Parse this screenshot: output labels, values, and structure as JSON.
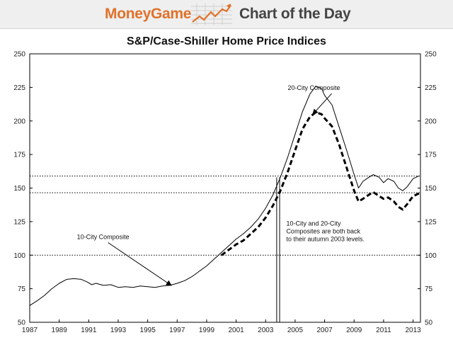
{
  "header": {
    "brand": "MoneyGame",
    "tagline": "Chart of the Day",
    "brand_color": "#e0712a",
    "tagline_color": "#444444",
    "logo_icon": "trend-chart-arrow-icon"
  },
  "chart_data": {
    "type": "line",
    "title": "S&P/Case-Shiller Home Price Indices",
    "xlabel": "",
    "ylabel": "",
    "xlim": [
      1987,
      2013.5
    ],
    "ylim": [
      50,
      250
    ],
    "x_ticks": [
      1987,
      1989,
      1991,
      1993,
      1995,
      1997,
      1999,
      2001,
      2003,
      2005,
      2007,
      2009,
      2011,
      2013
    ],
    "y_ticks": [
      50,
      75,
      100,
      125,
      150,
      175,
      200,
      225,
      250
    ],
    "y_axis_both_sides": true,
    "grid": false,
    "series": [
      {
        "name": "10-City Composite",
        "style": "solid",
        "color": "#000000",
        "points": [
          [
            1987.0,
            62.5
          ],
          [
            1987.5,
            66
          ],
          [
            1988.0,
            70
          ],
          [
            1988.5,
            75
          ],
          [
            1989.0,
            79
          ],
          [
            1989.5,
            82
          ],
          [
            1990.0,
            82.5
          ],
          [
            1990.5,
            82
          ],
          [
            1990.9,
            80
          ],
          [
            1991.2,
            78
          ],
          [
            1991.5,
            79
          ],
          [
            1992.0,
            77.5
          ],
          [
            1992.5,
            78
          ],
          [
            1993.0,
            76
          ],
          [
            1993.5,
            76.5
          ],
          [
            1994.0,
            76
          ],
          [
            1994.5,
            77
          ],
          [
            1995.0,
            76.5
          ],
          [
            1995.5,
            76
          ],
          [
            1996.0,
            77
          ],
          [
            1996.5,
            77.5
          ],
          [
            1997.0,
            79
          ],
          [
            1997.5,
            81
          ],
          [
            1998.0,
            84
          ],
          [
            1998.5,
            88
          ],
          [
            1999.0,
            92
          ],
          [
            1999.5,
            97
          ],
          [
            2000.0,
            102
          ],
          [
            2000.5,
            107
          ],
          [
            2001.0,
            112
          ],
          [
            2001.5,
            116
          ],
          [
            2002.0,
            121
          ],
          [
            2002.5,
            127
          ],
          [
            2003.0,
            135
          ],
          [
            2003.5,
            145
          ],
          [
            2004.0,
            158
          ],
          [
            2004.5,
            173
          ],
          [
            2005.0,
            190
          ],
          [
            2005.5,
            207
          ],
          [
            2006.0,
            220
          ],
          [
            2006.4,
            226
          ],
          [
            2006.8,
            224
          ],
          [
            2007.0,
            219
          ],
          [
            2007.5,
            212
          ],
          [
            2008.0,
            195
          ],
          [
            2008.5,
            178
          ],
          [
            2009.0,
            160
          ],
          [
            2009.3,
            150
          ],
          [
            2009.6,
            155
          ],
          [
            2010.0,
            158
          ],
          [
            2010.3,
            160
          ],
          [
            2010.7,
            158
          ],
          [
            2011.0,
            154
          ],
          [
            2011.3,
            157
          ],
          [
            2011.7,
            155
          ],
          [
            2012.0,
            150
          ],
          [
            2012.3,
            148
          ],
          [
            2012.6,
            151
          ],
          [
            2013.0,
            157
          ],
          [
            2013.4,
            159
          ]
        ]
      },
      {
        "name": "20-City Composite",
        "style": "dashed",
        "color": "#000000",
        "points": [
          [
            2000.0,
            100
          ],
          [
            2000.5,
            104
          ],
          [
            2001.0,
            108
          ],
          [
            2001.5,
            111
          ],
          [
            2002.0,
            116
          ],
          [
            2002.5,
            121
          ],
          [
            2003.0,
            128
          ],
          [
            2003.5,
            137
          ],
          [
            2004.0,
            148
          ],
          [
            2004.5,
            162
          ],
          [
            2005.0,
            178
          ],
          [
            2005.5,
            194
          ],
          [
            2006.0,
            203
          ],
          [
            2006.4,
            206.5
          ],
          [
            2006.8,
            205
          ],
          [
            2007.0,
            202
          ],
          [
            2007.5,
            196
          ],
          [
            2008.0,
            182
          ],
          [
            2008.5,
            165
          ],
          [
            2009.0,
            148
          ],
          [
            2009.3,
            140
          ],
          [
            2009.6,
            142
          ],
          [
            2010.0,
            145
          ],
          [
            2010.3,
            147
          ],
          [
            2010.7,
            144
          ],
          [
            2011.0,
            142
          ],
          [
            2011.3,
            143
          ],
          [
            2011.7,
            140
          ],
          [
            2012.0,
            136
          ],
          [
            2012.3,
            134
          ],
          [
            2012.6,
            138
          ],
          [
            2013.0,
            144
          ],
          [
            2013.4,
            146
          ]
        ]
      }
    ],
    "reference_lines": {
      "dotted_horizontal": [
        159,
        146.5,
        100
      ],
      "vertical_band_x": [
        2003.75,
        2003.95
      ]
    },
    "annotations": [
      {
        "id": "label_20city",
        "text": "20-City Composite",
        "x": 2004.5,
        "y": 223,
        "arrow_to": [
          2006.2,
          205
        ]
      },
      {
        "id": "label_10city",
        "text": "10-City Composite",
        "x": 1990.2,
        "y": 112,
        "arrow_to": [
          1996.6,
          77.5
        ]
      },
      {
        "id": "note",
        "lines": [
          "10-City and 20-City",
          "Composites are both back",
          "to their autumn 2003 levels."
        ],
        "x": 2004.4,
        "y": 122
      }
    ]
  }
}
